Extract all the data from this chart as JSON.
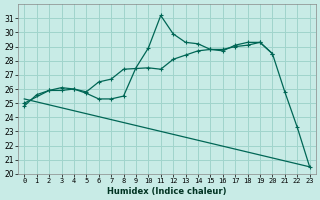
{
  "xlabel": "Humidex (Indice chaleur)",
  "background_color": "#c8ebe6",
  "grid_color": "#a0d4cc",
  "line_color": "#006655",
  "xlim": [
    -0.5,
    23.5
  ],
  "ylim": [
    20,
    32
  ],
  "yticks": [
    20,
    21,
    22,
    23,
    24,
    25,
    26,
    27,
    28,
    29,
    30,
    31
  ],
  "xticks": [
    0,
    1,
    2,
    3,
    4,
    5,
    6,
    7,
    8,
    9,
    10,
    11,
    12,
    13,
    14,
    15,
    16,
    17,
    18,
    19,
    20,
    21,
    22,
    23
  ],
  "series1_x": [
    0,
    1,
    2,
    3,
    4,
    5,
    6,
    7,
    8,
    9,
    10,
    11,
    12,
    13,
    14,
    15,
    16,
    17,
    18,
    19,
    20,
    21,
    22,
    23
  ],
  "series1_y": [
    24.8,
    25.6,
    25.9,
    25.9,
    26.0,
    25.7,
    25.3,
    25.3,
    25.5,
    27.5,
    28.9,
    31.2,
    29.9,
    29.3,
    29.2,
    28.8,
    28.7,
    29.1,
    29.3,
    29.3,
    28.5,
    25.8,
    23.3,
    20.5
  ],
  "series2_x": [
    0,
    2,
    3,
    4,
    5,
    6,
    7,
    8,
    10,
    11,
    12,
    13,
    14,
    15,
    16,
    17,
    18,
    19,
    20
  ],
  "series2_y": [
    25.0,
    25.9,
    26.1,
    26.0,
    25.8,
    26.5,
    26.7,
    27.4,
    27.5,
    27.4,
    28.1,
    28.4,
    28.7,
    28.8,
    28.8,
    29.0,
    29.1,
    29.3,
    28.5
  ],
  "series3_x": [
    0,
    23
  ],
  "series3_y": [
    25.3,
    20.5
  ]
}
